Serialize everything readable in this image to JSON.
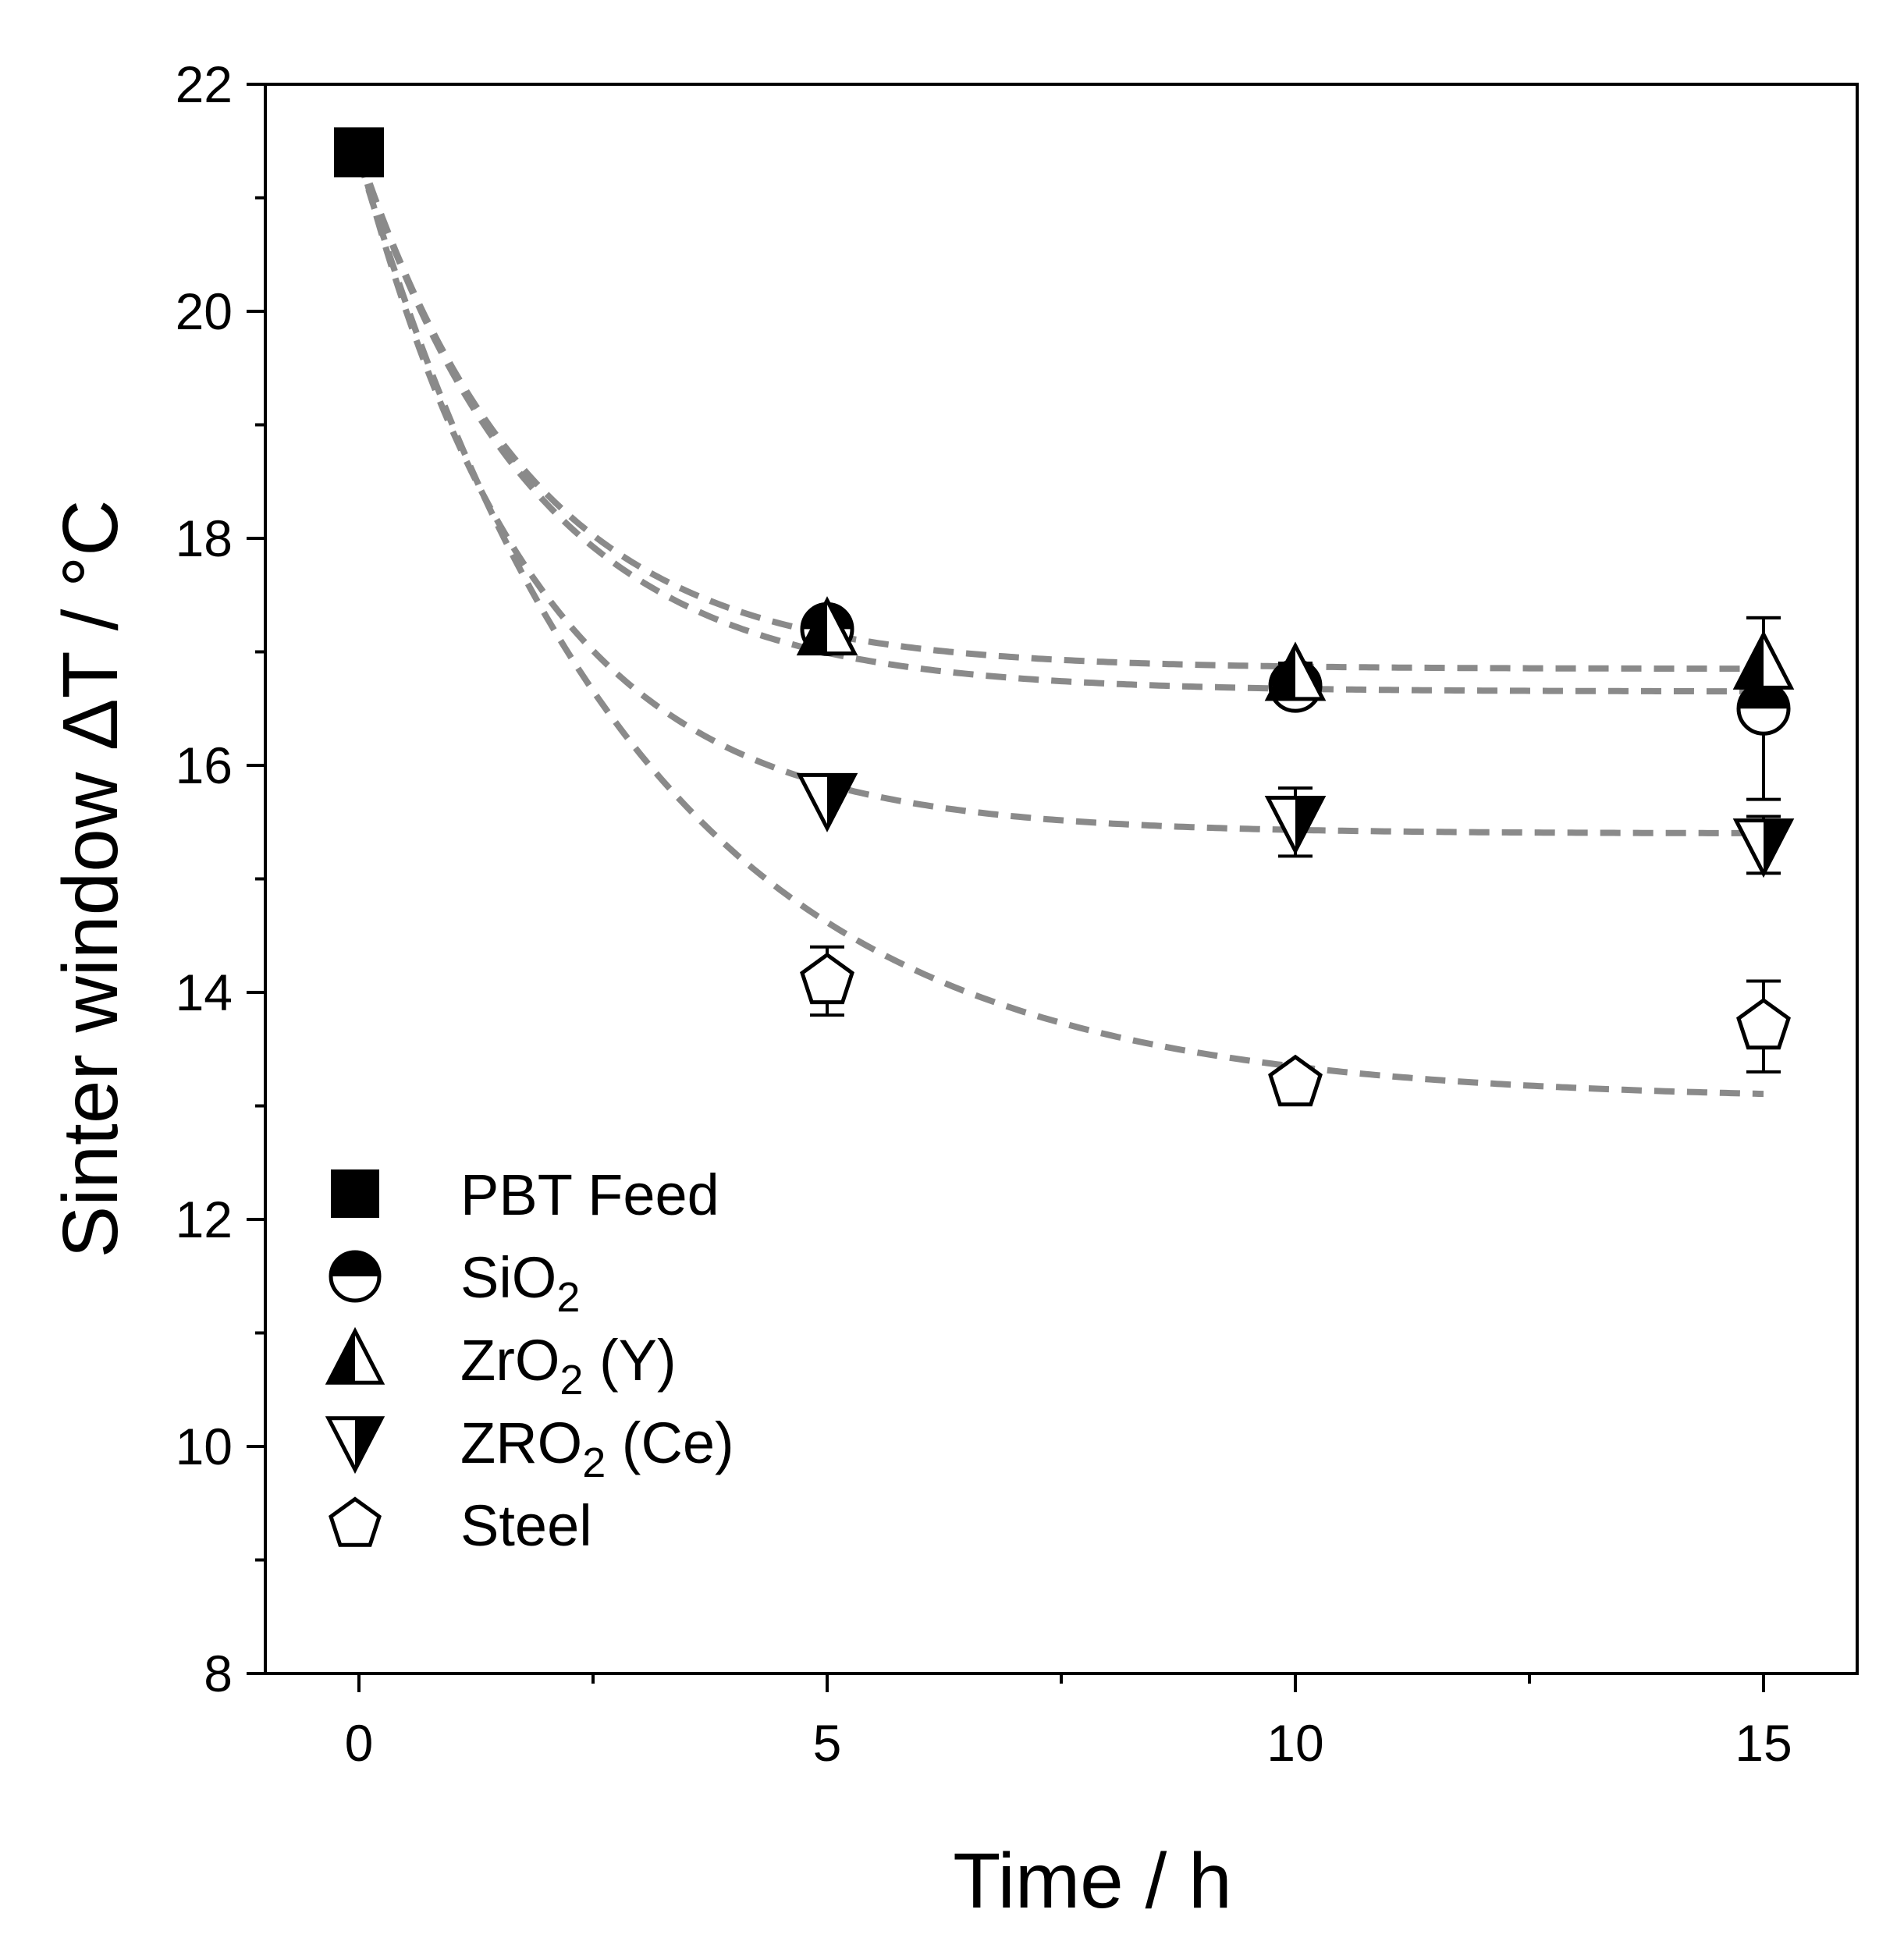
{
  "chart_data": {
    "type": "scatter",
    "xlabel": "Time / h",
    "ylabel": "Sinter window ΔT / °C",
    "xlim": [
      -1,
      16
    ],
    "ylim": [
      8,
      22
    ],
    "xticks": [
      0,
      5,
      10,
      15
    ],
    "yticks": [
      8,
      10,
      12,
      14,
      16,
      18,
      20,
      22
    ],
    "legend_position": "bottom-left",
    "fit_line_color": "#8a8a8a",
    "series": [
      {
        "name": "PBT Feed",
        "legend_parts": [
          {
            "t": "PBT Feed",
            "sub": false
          }
        ],
        "marker": "square",
        "x": [
          0
        ],
        "y": [
          21.4
        ],
        "err": [
          0.0
        ]
      },
      {
        "name": "SiO2",
        "legend_parts": [
          {
            "t": "SiO",
            "sub": false
          },
          {
            "t": "2",
            "sub": true
          }
        ],
        "marker": "half-circle",
        "x": [
          5,
          10,
          15
        ],
        "y": [
          17.2,
          16.7,
          16.5
        ],
        "err": [
          0.1,
          0.1,
          0.8
        ],
        "fit": {
          "a": 4.75,
          "tau": 1.9,
          "c": 16.65
        }
      },
      {
        "name": "ZrO2 (Y)",
        "legend_parts": [
          {
            "t": "ZrO",
            "sub": false
          },
          {
            "t": "2",
            "sub": true
          },
          {
            "t": " (Y)",
            "sub": false
          }
        ],
        "marker": "half-up-triangle",
        "x": [
          5,
          10,
          15
        ],
        "y": [
          17.2,
          16.8,
          16.9
        ],
        "err": [
          0.1,
          0.1,
          0.4
        ],
        "fit": {
          "a": 4.55,
          "tau": 1.85,
          "c": 16.85
        }
      },
      {
        "name": "ZRO2 (Ce)",
        "legend_parts": [
          {
            "t": "ZRO",
            "sub": false
          },
          {
            "t": "2",
            "sub": true
          },
          {
            "t": " (Ce)",
            "sub": false
          }
        ],
        "marker": "half-down-triangle",
        "x": [
          5,
          10,
          15
        ],
        "y": [
          15.7,
          15.5,
          15.3
        ],
        "err": [
          0.0,
          0.3,
          0.25
        ],
        "fit": {
          "a": 6.0,
          "tau": 1.9,
          "c": 15.4
        }
      },
      {
        "name": "Steel",
        "legend_parts": [
          {
            "t": "Steel",
            "sub": false
          }
        ],
        "marker": "pentagon",
        "x": [
          5,
          10,
          15
        ],
        "y": [
          14.1,
          13.2,
          13.7
        ],
        "err": [
          0.3,
          0.0,
          0.4
        ],
        "fit": {
          "a": 8.3,
          "tau": 3.0,
          "c": 13.05
        }
      }
    ]
  }
}
